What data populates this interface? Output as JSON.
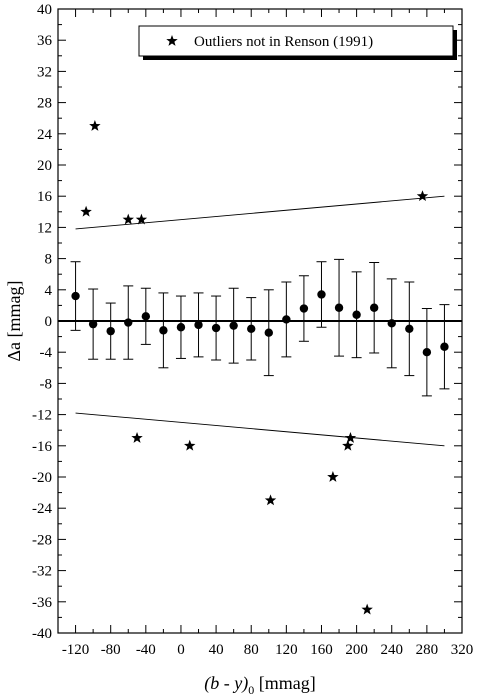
{
  "chart_data": {
    "type": "scatter",
    "xlabel_main": "(b - y)",
    "xlabel_sub": "0",
    "xlabel_unit": "[mmag]",
    "ylabel": "Δa  [mmag]",
    "xlim": [
      -140,
      320
    ],
    "ylim": [
      -40,
      40
    ],
    "xticks": [
      -120,
      -80,
      -40,
      0,
      40,
      80,
      120,
      160,
      200,
      240,
      280,
      320
    ],
    "yticks": [
      -40,
      -36,
      -32,
      -28,
      -24,
      -20,
      -16,
      -12,
      -8,
      -4,
      0,
      4,
      8,
      12,
      16,
      20,
      24,
      28,
      32,
      36,
      40
    ],
    "legend": {
      "position": "top-right",
      "label": "Outliers not in Renson (1991)"
    },
    "binned_means": {
      "x": [
        -120,
        -100,
        -80,
        -60,
        -40,
        -20,
        0,
        20,
        40,
        60,
        80,
        100,
        120,
        140,
        160,
        180,
        200,
        220,
        240,
        260,
        280,
        300
      ],
      "y": [
        3.2,
        -0.4,
        -1.3,
        -0.2,
        0.6,
        -1.2,
        -0.8,
        -0.5,
        -0.9,
        -0.6,
        -1.0,
        -1.5,
        0.2,
        1.6,
        3.4,
        1.7,
        0.8,
        1.7,
        -0.3,
        -1.0,
        -4.0,
        -3.3
      ],
      "error": [
        4.4,
        4.5,
        3.6,
        4.7,
        3.6,
        4.8,
        4.0,
        4.1,
        4.1,
        4.8,
        4.0,
        5.5,
        4.8,
        4.2,
        4.2,
        6.2,
        5.5,
        5.8,
        5.7,
        6.0,
        5.6,
        5.4
      ]
    },
    "outliers": {
      "x": [
        -108,
        -98,
        -60,
        -45,
        -50,
        10,
        102,
        173,
        190,
        193,
        212,
        275
      ],
      "y": [
        14,
        25,
        13,
        13,
        -15,
        -16,
        -23,
        -20,
        -16,
        -15,
        -37,
        16
      ]
    },
    "zero_line": 0,
    "envelope_lines": [
      {
        "x": [
          -120,
          300
        ],
        "y": [
          11.8,
          16.0
        ]
      },
      {
        "x": [
          -120,
          300
        ],
        "y": [
          -11.8,
          -16.0
        ]
      }
    ]
  }
}
